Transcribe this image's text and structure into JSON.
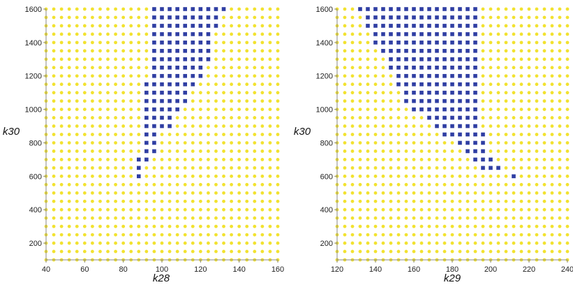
{
  "colors": {
    "allowed": "#f2e230",
    "excluded": "#2f3ea3",
    "axis": "#8a8a8a"
  },
  "chart_data": [
    {
      "type": "scatter",
      "title": "",
      "xlabel": "k28",
      "ylabel": "k30",
      "xlim": [
        40,
        160
      ],
      "ylim": [
        100,
        1600
      ],
      "xticks": [
        40,
        60,
        80,
        100,
        120,
        140,
        160
      ],
      "yticks": [
        200,
        400,
        600,
        800,
        1000,
        1200,
        1400,
        1600
      ],
      "x_grid": {
        "start": 40,
        "step": 4,
        "count": 31
      },
      "y_grid": {
        "start": 100,
        "step": 50,
        "count": 31
      },
      "grid": false,
      "series": [
        {
          "marker": "circle",
          "color": "#f2e230",
          "rule": "all remaining grid points"
        },
        {
          "marker": "square",
          "color": "#2f3ea3",
          "rows": [
            {
              "y": 1600,
              "x_from": 96,
              "x_to": 132
            },
            {
              "y": 1550,
              "x_from": 96,
              "x_to": 128
            },
            {
              "y": 1500,
              "x_from": 96,
              "x_to": 128
            },
            {
              "y": 1450,
              "x_from": 96,
              "x_to": 124
            },
            {
              "y": 1400,
              "x_from": 96,
              "x_to": 124
            },
            {
              "y": 1350,
              "x_from": 96,
              "x_to": 124
            },
            {
              "y": 1300,
              "x_from": 96,
              "x_to": 124
            },
            {
              "y": 1250,
              "x_from": 96,
              "x_to": 120
            },
            {
              "y": 1200,
              "x_from": 96,
              "x_to": 120
            },
            {
              "y": 1150,
              "x_from": 92,
              "x_to": 116
            },
            {
              "y": 1100,
              "x_from": 92,
              "x_to": 112
            },
            {
              "y": 1050,
              "x_from": 92,
              "x_to": 112
            },
            {
              "y": 1000,
              "x_from": 92,
              "x_to": 108
            },
            {
              "y": 950,
              "x_from": 92,
              "x_to": 104
            },
            {
              "y": 900,
              "x_from": 92,
              "x_to": 104
            },
            {
              "y": 850,
              "x_from": 92,
              "x_to": 96
            },
            {
              "y": 800,
              "x_from": 92,
              "x_to": 96
            },
            {
              "y": 750,
              "x_from": 92,
              "x_to": 96
            },
            {
              "y": 700,
              "x_from": 88,
              "x_to": 92
            },
            {
              "y": 650,
              "x_from": 88,
              "x_to": 88
            },
            {
              "y": 600,
              "x_from": 88,
              "x_to": 88
            }
          ]
        }
      ]
    },
    {
      "type": "scatter",
      "title": "",
      "xlabel": "k29",
      "ylabel": "k30",
      "xlim": [
        120,
        240
      ],
      "ylim": [
        100,
        1600
      ],
      "xticks": [
        120,
        140,
        160,
        180,
        200,
        220,
        240
      ],
      "yticks": [
        200,
        400,
        600,
        800,
        1000,
        1200,
        1400,
        1600
      ],
      "x_grid": {
        "start": 120,
        "step": 4,
        "count": 31
      },
      "y_grid": {
        "start": 100,
        "step": 50,
        "count": 31
      },
      "grid": false,
      "series": [
        {
          "marker": "circle",
          "color": "#f2e230",
          "rule": "all remaining grid points"
        },
        {
          "marker": "square",
          "color": "#2f3ea3",
          "rows": [
            {
              "y": 1600,
              "x_from": 132,
              "x_to": 192
            },
            {
              "y": 1550,
              "x_from": 136,
              "x_to": 192
            },
            {
              "y": 1500,
              "x_from": 136,
              "x_to": 192
            },
            {
              "y": 1450,
              "x_from": 140,
              "x_to": 192
            },
            {
              "y": 1400,
              "x_from": 140,
              "x_to": 192
            },
            {
              "y": 1350,
              "x_from": 144,
              "x_to": 192
            },
            {
              "y": 1300,
              "x_from": 148,
              "x_to": 192
            },
            {
              "y": 1250,
              "x_from": 148,
              "x_to": 192
            },
            {
              "y": 1200,
              "x_from": 152,
              "x_to": 192
            },
            {
              "y": 1150,
              "x_from": 152,
              "x_to": 192
            },
            {
              "y": 1100,
              "x_from": 156,
              "x_to": 192
            },
            {
              "y": 1050,
              "x_from": 156,
              "x_to": 192
            },
            {
              "y": 1000,
              "x_from": 160,
              "x_to": 192
            },
            {
              "y": 950,
              "x_from": 168,
              "x_to": 192
            },
            {
              "y": 900,
              "x_from": 172,
              "x_to": 192
            },
            {
              "y": 850,
              "x_from": 176,
              "x_to": 196
            },
            {
              "y": 800,
              "x_from": 184,
              "x_to": 196
            },
            {
              "y": 750,
              "x_from": 188,
              "x_to": 196
            },
            {
              "y": 700,
              "x_from": 192,
              "x_to": 200
            },
            {
              "y": 650,
              "x_from": 196,
              "x_to": 204
            },
            {
              "y": 600,
              "x_from": 212,
              "x_to": 212
            }
          ]
        }
      ]
    }
  ]
}
